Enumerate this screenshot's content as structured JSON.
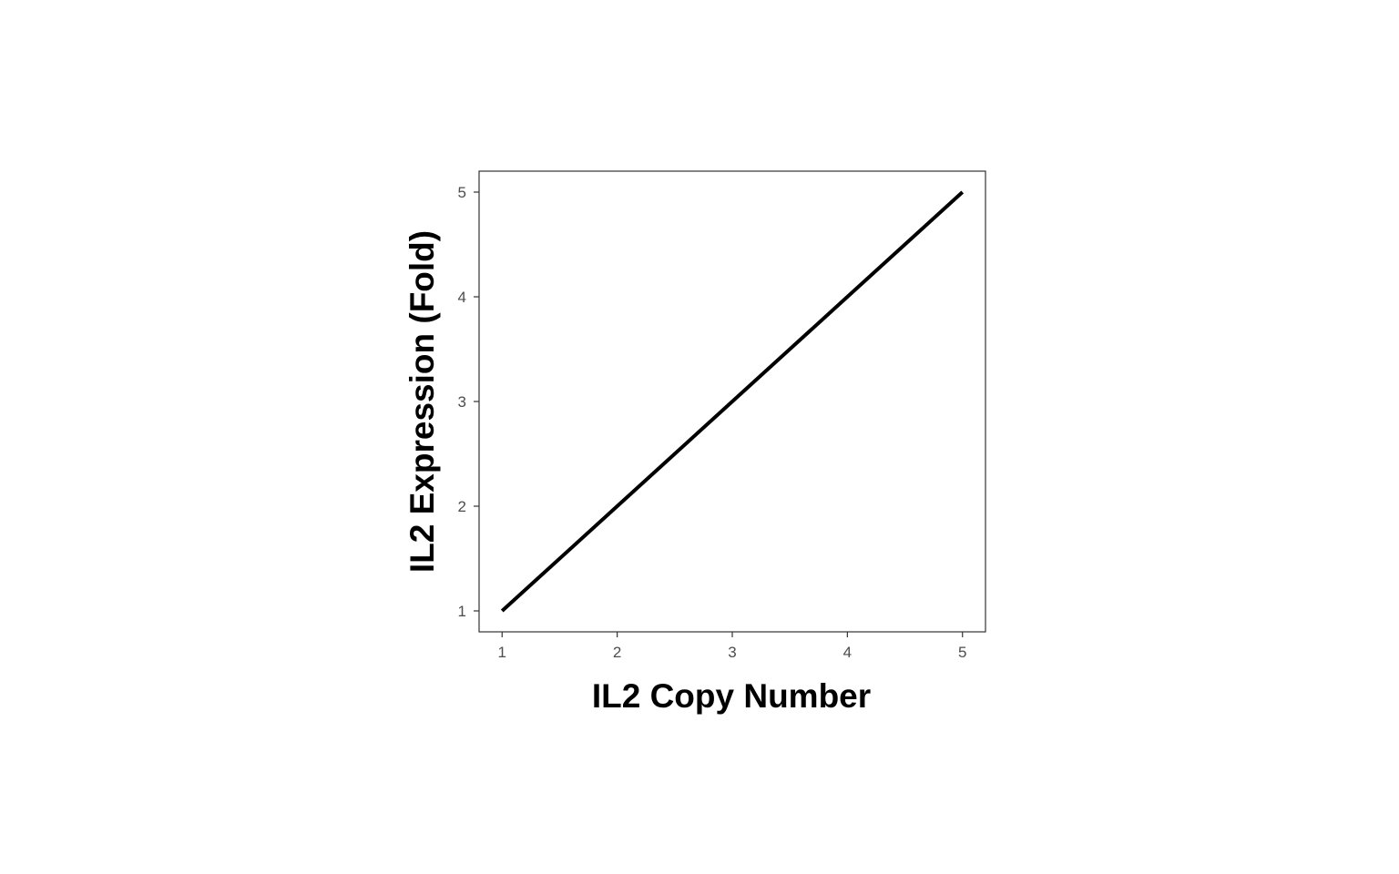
{
  "chart_data": {
    "type": "line",
    "xlabel": "IL2 Copy Number",
    "ylabel": "IL2 Expression (Fold)",
    "xlim": [
      0.8,
      5.2
    ],
    "ylim": [
      0.8,
      5.2
    ],
    "x_ticks": [
      "1",
      "2",
      "3",
      "4",
      "5"
    ],
    "y_ticks": [
      "1",
      "2",
      "3",
      "4",
      "5"
    ],
    "series": [
      {
        "x": [
          1,
          2,
          3,
          4,
          5
        ],
        "y": [
          1,
          2,
          3,
          4,
          5
        ],
        "color": "#000000"
      }
    ],
    "grid": false,
    "legend": "none",
    "colors": {
      "panel_border": "#333333",
      "tick_text": "#4d4d4d",
      "line": "#000000"
    }
  }
}
